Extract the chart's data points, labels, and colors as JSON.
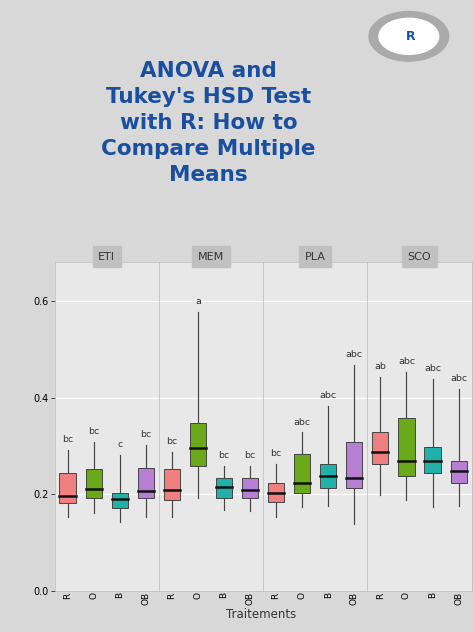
{
  "title_lines": [
    "ANOVA and",
    "Tukey's HSD Test",
    "with R: How to",
    "Compare Multiple",
    "Means"
  ],
  "title_color": "#1a4fa0",
  "bg_color": "#d8d8d8",
  "plot_bg_color": "#e8e8e8",
  "panel_header_color": "#c0c0c0",
  "panels": [
    "ETI",
    "MEM",
    "PLA",
    "SCO"
  ],
  "xlabel": "Traitements",
  "ylim": [
    0.0,
    0.68
  ],
  "yticks": [
    0.0,
    0.2,
    0.4,
    0.6
  ],
  "groups": [
    "R",
    "O",
    "B",
    "OB"
  ],
  "box_colors": [
    "#f08080",
    "#6aaa1a",
    "#20b2aa",
    "#b87ed4"
  ],
  "box_data": {
    "ETI": {
      "R": {
        "q1": 0.182,
        "med": 0.197,
        "q3": 0.245,
        "whislo": 0.152,
        "whishi": 0.292
      },
      "O": {
        "q1": 0.193,
        "med": 0.21,
        "q3": 0.252,
        "whislo": 0.162,
        "whishi": 0.308
      },
      "B": {
        "q1": 0.172,
        "med": 0.19,
        "q3": 0.202,
        "whislo": 0.143,
        "whishi": 0.282
      },
      "OB": {
        "q1": 0.193,
        "med": 0.207,
        "q3": 0.255,
        "whislo": 0.153,
        "whishi": 0.302
      }
    },
    "MEM": {
      "R": {
        "q1": 0.188,
        "med": 0.208,
        "q3": 0.253,
        "whislo": 0.153,
        "whishi": 0.288
      },
      "O": {
        "q1": 0.258,
        "med": 0.295,
        "q3": 0.348,
        "whislo": 0.193,
        "whishi": 0.578
      },
      "B": {
        "q1": 0.193,
        "med": 0.215,
        "q3": 0.233,
        "whislo": 0.168,
        "whishi": 0.258
      },
      "OB": {
        "q1": 0.193,
        "med": 0.208,
        "q3": 0.233,
        "whislo": 0.166,
        "whishi": 0.258
      }
    },
    "PLA": {
      "R": {
        "q1": 0.183,
        "med": 0.203,
        "q3": 0.223,
        "whislo": 0.153,
        "whishi": 0.263
      },
      "O": {
        "q1": 0.203,
        "med": 0.223,
        "q3": 0.283,
        "whislo": 0.173,
        "whishi": 0.328
      },
      "B": {
        "q1": 0.213,
        "med": 0.238,
        "q3": 0.263,
        "whislo": 0.176,
        "whishi": 0.383
      },
      "OB": {
        "q1": 0.213,
        "med": 0.233,
        "q3": 0.308,
        "whislo": 0.138,
        "whishi": 0.468
      }
    },
    "SCO": {
      "R": {
        "q1": 0.263,
        "med": 0.288,
        "q3": 0.328,
        "whislo": 0.198,
        "whishi": 0.443
      },
      "O": {
        "q1": 0.238,
        "med": 0.268,
        "q3": 0.358,
        "whislo": 0.188,
        "whishi": 0.453
      },
      "B": {
        "q1": 0.243,
        "med": 0.268,
        "q3": 0.298,
        "whislo": 0.173,
        "whishi": 0.438
      },
      "OB": {
        "q1": 0.223,
        "med": 0.248,
        "q3": 0.268,
        "whislo": 0.176,
        "whishi": 0.418
      }
    }
  },
  "annotations": {
    "ETI": {
      "R": "bc",
      "O": "bc",
      "B": "c",
      "OB": "bc"
    },
    "MEM": {
      "R": "bc",
      "O": "a",
      "B": "bc",
      "OB": "bc"
    },
    "PLA": {
      "R": "bc",
      "O": "abc",
      "B": "abc",
      "OB": "abc"
    },
    "SCO": {
      "R": "ab",
      "O": "abc",
      "B": "abc",
      "OB": "abc"
    }
  }
}
